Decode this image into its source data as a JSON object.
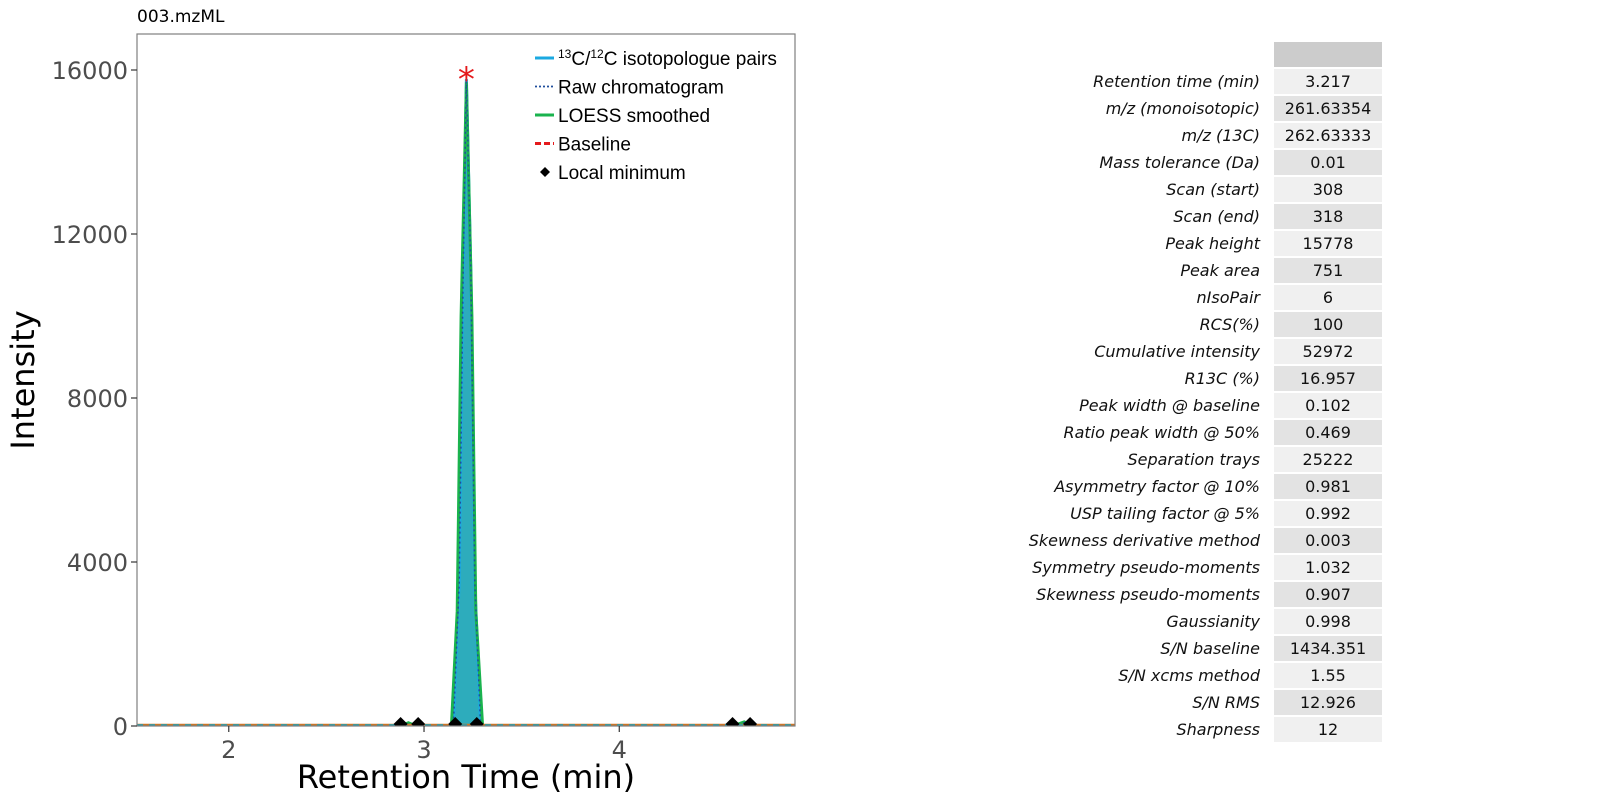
{
  "file_title": "003.mzML",
  "chart_data": {
    "type": "line",
    "title": "003.mzML",
    "xlabel": "Retention Time (min)",
    "ylabel": "Intensity",
    "xlim": [
      1.53,
      4.9
    ],
    "ylim": [
      0,
      16000
    ],
    "x_ticks": [
      2,
      3,
      4
    ],
    "y_ticks": [
      0,
      4000,
      8000,
      12000,
      16000
    ],
    "grid": false,
    "legend_position": "top-right",
    "legend": [
      {
        "name": "¹³C/¹²C isotopologue pairs",
        "color": "#1ba9e1",
        "style": "solid"
      },
      {
        "name": "Raw chromatogram",
        "color": "#1f4e9c",
        "style": "dotted"
      },
      {
        "name": "LOESS smoothed",
        "color": "#1ab34e",
        "style": "solid"
      },
      {
        "name": "Baseline",
        "color": "#e41a1c",
        "style": "dashed"
      },
      {
        "name": "Local minimum",
        "color": "#000000",
        "style": "diamond"
      }
    ],
    "series": [
      {
        "name": "¹³C/¹²C isotopologue pairs",
        "color": "#1ba9e1",
        "x": [
          1.53,
          2.9,
          2.92,
          2.95,
          3.15,
          3.18,
          3.2,
          3.217,
          3.24,
          3.26,
          3.29,
          4.6,
          4.64,
          4.67,
          4.9
        ],
        "y": [
          0,
          0,
          60,
          0,
          0,
          3500,
          11000,
          15778,
          11000,
          3500,
          0,
          0,
          80,
          0,
          0
        ]
      },
      {
        "name": "Raw chromatogram",
        "color": "#1f4e9c",
        "x": [
          1.53,
          2.9,
          2.92,
          2.95,
          3.15,
          3.18,
          3.2,
          3.217,
          3.24,
          3.26,
          3.29,
          4.6,
          4.64,
          4.67,
          4.9
        ],
        "y": [
          0,
          0,
          60,
          0,
          0,
          3500,
          11000,
          15778,
          11000,
          3500,
          0,
          0,
          80,
          0,
          0
        ]
      },
      {
        "name": "LOESS smoothed",
        "color": "#1ab34e",
        "x": [
          1.53,
          2.88,
          2.92,
          2.96,
          3.14,
          3.17,
          3.19,
          3.217,
          3.245,
          3.265,
          3.3,
          4.58,
          4.64,
          4.68,
          4.9
        ],
        "y": [
          0,
          0,
          80,
          0,
          0,
          2800,
          10000,
          15700,
          10000,
          2800,
          0,
          0,
          100,
          0,
          0
        ]
      },
      {
        "name": "Baseline",
        "color": "#e41a1c",
        "x": [
          1.53,
          4.9
        ],
        "y": [
          20,
          20
        ]
      }
    ],
    "local_minima": [
      {
        "x": 2.88,
        "y": 0
      },
      {
        "x": 2.97,
        "y": 0
      },
      {
        "x": 3.16,
        "y": 0
      },
      {
        "x": 3.27,
        "y": 0
      },
      {
        "x": 4.58,
        "y": 0
      },
      {
        "x": 4.67,
        "y": 0
      }
    ],
    "apex_marker": {
      "x": 3.217,
      "y": 15778,
      "symbol": "*",
      "color": "#e41a1c"
    }
  },
  "metrics": [
    {
      "label": "Retention time (min)",
      "value": "3.217"
    },
    {
      "label": "m/z (monoisotopic)",
      "value": "261.63354"
    },
    {
      "label": "m/z (13C)",
      "value": "262.63333"
    },
    {
      "label": "Mass tolerance (Da)",
      "value": "0.01"
    },
    {
      "label": "Scan (start)",
      "value": "308"
    },
    {
      "label": "Scan (end)",
      "value": "318"
    },
    {
      "label": "Peak height",
      "value": "15778"
    },
    {
      "label": "Peak area",
      "value": "751"
    },
    {
      "label": "nIsoPair",
      "value": "6"
    },
    {
      "label": "RCS(%)",
      "value": "100"
    },
    {
      "label": "Cumulative intensity",
      "value": "52972"
    },
    {
      "label": "R13C (%)",
      "value": "16.957"
    },
    {
      "label": "Peak width @ baseline",
      "value": "0.102"
    },
    {
      "label": "Ratio peak width @ 50%",
      "value": "0.469"
    },
    {
      "label": "Separation trays",
      "value": "25222"
    },
    {
      "label": "Asymmetry factor @ 10%",
      "value": "0.981"
    },
    {
      "label": "USP tailing factor @ 5%",
      "value": "0.992"
    },
    {
      "label": "Skewness derivative method",
      "value": "0.003"
    },
    {
      "label": "Symmetry pseudo-moments",
      "value": "1.032"
    },
    {
      "label": "Skewness pseudo-moments",
      "value": "0.907"
    },
    {
      "label": "Gaussianity",
      "value": "0.998"
    },
    {
      "label": "S/N baseline",
      "value": "1434.351"
    },
    {
      "label": "S/N xcms method",
      "value": "1.55"
    },
    {
      "label": "S/N RMS",
      "value": "12.926"
    },
    {
      "label": "Sharpness",
      "value": "12"
    }
  ]
}
